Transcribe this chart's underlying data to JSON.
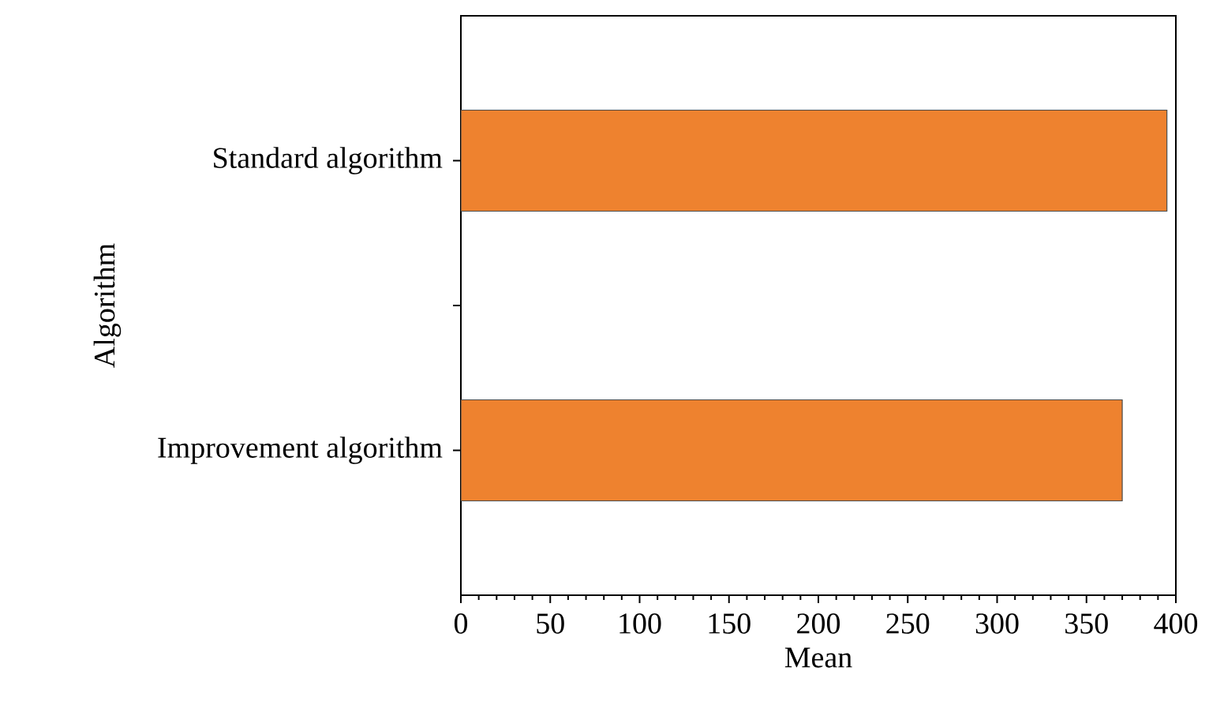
{
  "chart_data": {
    "type": "bar",
    "orientation": "horizontal",
    "xlabel": "Mean",
    "ylabel": "Algorithm",
    "categories": [
      "Standard algorithm",
      "Improvement algorithm"
    ],
    "values": [
      395,
      370
    ],
    "color": "#ee822f",
    "xlim": [
      0,
      400
    ],
    "xticks": [
      0,
      50,
      100,
      150,
      200,
      250,
      300,
      350,
      400
    ]
  }
}
